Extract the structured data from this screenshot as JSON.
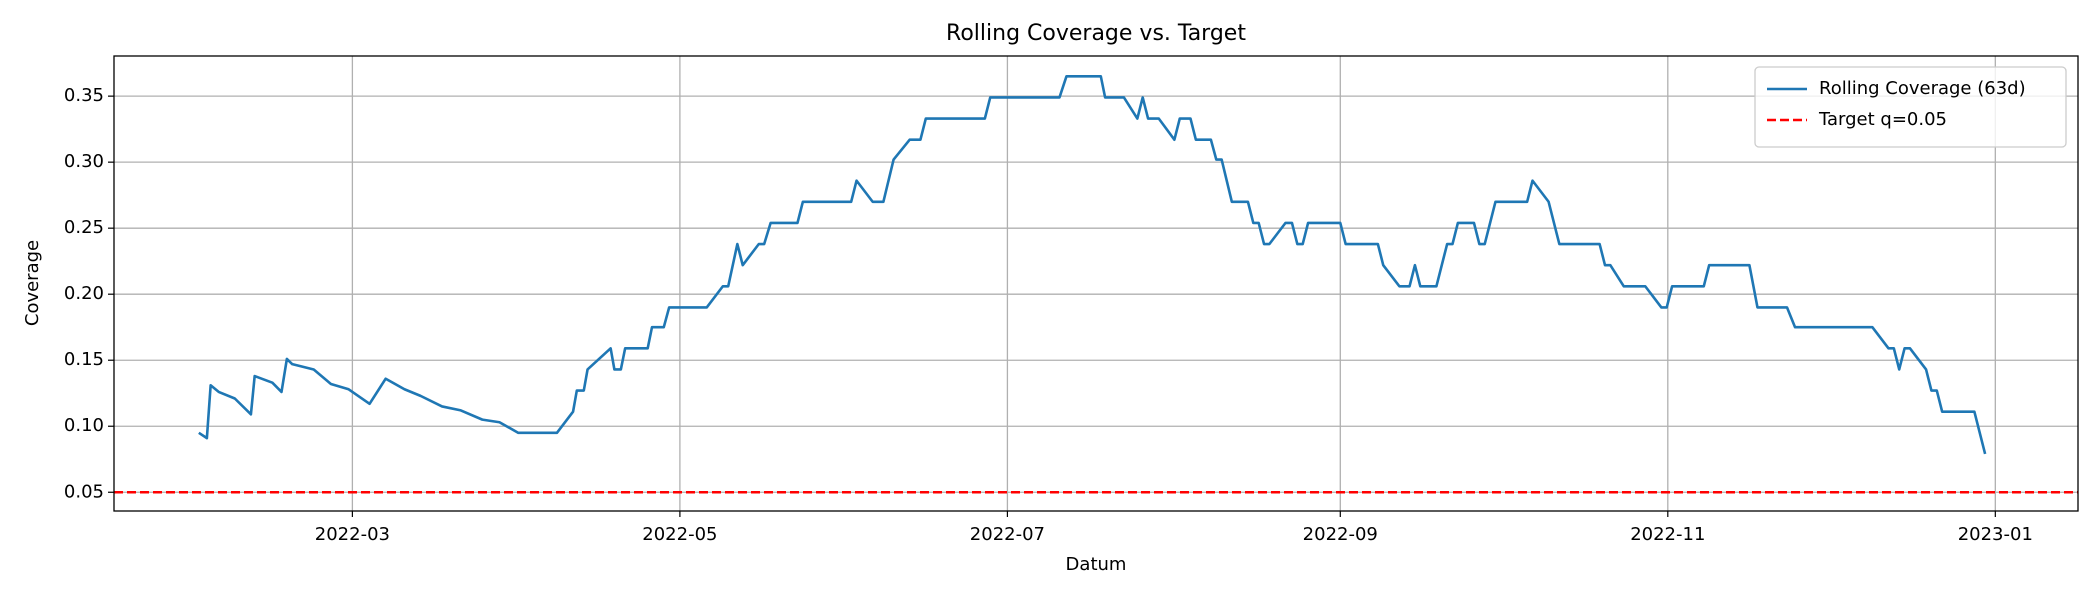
{
  "chart_data": {
    "type": "line",
    "title": "Rolling Coverage vs. Target",
    "x_label": "Datum",
    "y_label": "Coverage",
    "grid": true,
    "legend": "upper right",
    "xlim": [
      14.6,
      380.4
    ],
    "ylim": [
      0.0358,
      0.3804
    ],
    "xticks": [
      {
        "value": 59,
        "label": "2022-03"
      },
      {
        "value": 120,
        "label": "2022-05"
      },
      {
        "value": 181,
        "label": "2022-07"
      },
      {
        "value": 243,
        "label": "2022-09"
      },
      {
        "value": 304,
        "label": "2022-11"
      },
      {
        "value": 365,
        "label": "2023-01"
      }
    ],
    "yticks": [
      0.05,
      {
        "value": 0.1,
        "label": "0.10"
      },
      0.15,
      {
        "value": 0.2,
        "label": "0.20"
      },
      0.25,
      {
        "value": 0.3,
        "label": "0.30"
      },
      0.35
    ],
    "series": [
      {
        "name": "Rolling Coverage (63d)",
        "color": "#1f77b4",
        "x": [
          30.4,
          31.9,
          32.6,
          34.1,
          37.1,
          40.1,
          40.8,
          44.1,
          45.8,
          46.8,
          47.8,
          51.8,
          55.0,
          58.3,
          62.2,
          65.2,
          68.7,
          71.7,
          75.7,
          79.2,
          83.2,
          86.4,
          89.9,
          97.1,
          100.1,
          100.8,
          102.1,
          102.8,
          107.1,
          107.8,
          109.0,
          109.8,
          114.0,
          114.8,
          117.0,
          118.0,
          125.0,
          128.0,
          129.0,
          130.7,
          131.7,
          134.7,
          135.7,
          136.9,
          141.9,
          142.9,
          151.9,
          152.9,
          155.9,
          157.9,
          159.8,
          162.8,
          164.8,
          165.8,
          176.8,
          177.8,
          190.7,
          192.0,
          198.4,
          199.2,
          202.7,
          205.2,
          206.2,
          207.2,
          209.2,
          212.1,
          213.1,
          215.1,
          216.1,
          218.9,
          219.9,
          220.9,
          222.8,
          225.8,
          226.8,
          227.8,
          228.8,
          229.8,
          232.8,
          234.0,
          235.0,
          236.0,
          237.0,
          243.0,
          244.0,
          250.0,
          251.0,
          254.0,
          255.9,
          256.9,
          257.9,
          260.9,
          262.9,
          263.9,
          264.9,
          267.9,
          268.9,
          269.9,
          271.9,
          277.8,
          278.8,
          281.8,
          283.8,
          291.3,
          292.3,
          293.3,
          295.8,
          299.8,
          302.8,
          303.8,
          304.8,
          310.7,
          311.7,
          319.2,
          320.7,
          326.2,
          327.7,
          342.1,
          345.1,
          346.1,
          347.1,
          348.1,
          349.1,
          352.1,
          353.1,
          354.1,
          355.1,
          361.1,
          363.1
        ],
        "values": [
          0.095,
          0.091,
          0.131,
          0.126,
          0.121,
          0.109,
          0.138,
          0.133,
          0.126,
          0.151,
          0.147,
          0.143,
          0.132,
          0.128,
          0.117,
          0.136,
          0.128,
          0.123,
          0.115,
          0.112,
          0.105,
          0.103,
          0.095,
          0.095,
          0.111,
          0.127,
          0.127,
          0.143,
          0.159,
          0.143,
          0.143,
          0.159,
          0.159,
          0.175,
          0.175,
          0.19,
          0.19,
          0.206,
          0.206,
          0.238,
          0.222,
          0.238,
          0.238,
          0.254,
          0.254,
          0.27,
          0.27,
          0.286,
          0.27,
          0.27,
          0.302,
          0.317,
          0.317,
          0.333,
          0.333,
          0.349,
          0.349,
          0.365,
          0.365,
          0.349,
          0.349,
          0.333,
          0.349,
          0.333,
          0.333,
          0.317,
          0.333,
          0.333,
          0.317,
          0.317,
          0.302,
          0.302,
          0.27,
          0.27,
          0.254,
          0.254,
          0.238,
          0.238,
          0.254,
          0.254,
          0.238,
          0.238,
          0.254,
          0.254,
          0.238,
          0.238,
          0.222,
          0.206,
          0.206,
          0.222,
          0.206,
          0.206,
          0.238,
          0.238,
          0.254,
          0.254,
          0.238,
          0.238,
          0.27,
          0.27,
          0.286,
          0.27,
          0.238,
          0.238,
          0.222,
          0.222,
          0.206,
          0.206,
          0.19,
          0.19,
          0.206,
          0.206,
          0.222,
          0.222,
          0.19,
          0.19,
          0.175,
          0.175,
          0.159,
          0.159,
          0.143,
          0.159,
          0.159,
          0.143,
          0.127,
          0.127,
          0.111,
          0.111,
          0.079
        ]
      }
    ],
    "hlines": [
      {
        "name": "Target q=0.05",
        "color": "#ff0000",
        "y": 0.05
      }
    ]
  }
}
